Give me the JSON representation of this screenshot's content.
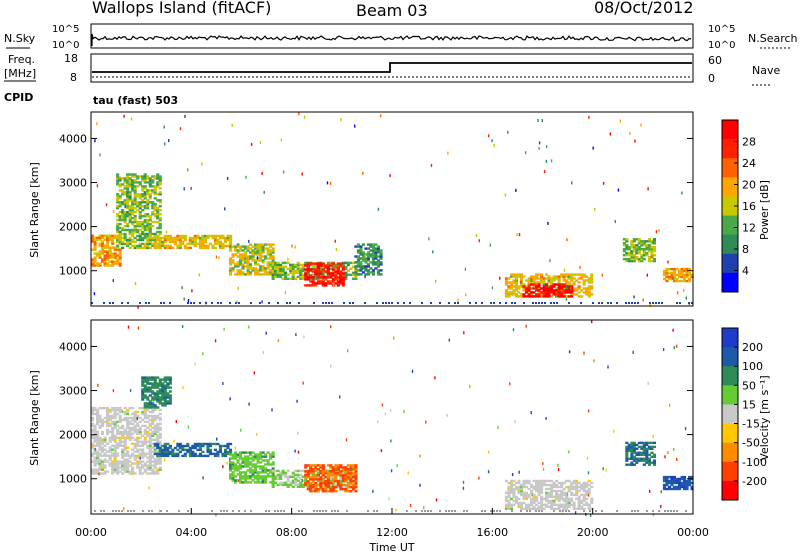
{
  "header": {
    "left_title": "Wallops Island (fitACF)",
    "center_title": "Beam 03",
    "right_title": "08/Oct/2012"
  },
  "sky_panel": {
    "left_label": "N.Sky",
    "right_label": "N.Search",
    "left_ticks": [
      "10^5",
      "10^0"
    ],
    "right_ticks": [
      "10^5",
      "10^0"
    ]
  },
  "freq_panel": {
    "left_label_line1": "Freq.",
    "left_label_line2": "[MHz]",
    "left_ticks": [
      "18",
      "8"
    ],
    "right_label": "Nave",
    "right_ticks": [
      "60",
      "0"
    ],
    "cpid_label": "CPID",
    "cpid_value": "tau (fast) 503"
  },
  "colors": {
    "power": [
      "#0000ff",
      "#2040b0",
      "#2e8b57",
      "#4aa84a",
      "#c8c800",
      "#ffa500",
      "#ff6000",
      "#ff2000",
      "#ff0000"
    ],
    "velocity": [
      "#1e3cc8",
      "#1e5aaa",
      "#2e8b57",
      "#66cc33",
      "#c8c8c8",
      "#ffc800",
      "#ff8c00",
      "#ff4000",
      "#ff0000"
    ]
  },
  "chart_data": [
    {
      "type": "heatmap",
      "name": "power",
      "ylabel": "Slant Range [km]",
      "yticks": [
        "1000",
        "2000",
        "3000",
        "4000"
      ],
      "ylim": [
        200,
        4600
      ],
      "xlim": [
        0,
        24
      ],
      "colorbar_label": "Power [dB]",
      "colorbar_ticks": [
        "28",
        "24",
        "20",
        "16",
        "12",
        "8",
        "4"
      ],
      "clim": [
        0,
        32
      ],
      "regions": [
        {
          "t0": 0.0,
          "t1": 1.2,
          "r0": 1100,
          "r1": 1800,
          "level": 20
        },
        {
          "t0": 1.0,
          "t1": 2.8,
          "r0": 1500,
          "r1": 3200,
          "level": 14
        },
        {
          "t0": 2.5,
          "t1": 5.5,
          "r0": 1500,
          "r1": 1800,
          "level": 18
        },
        {
          "t0": 5.5,
          "t1": 7.2,
          "r0": 900,
          "r1": 1600,
          "level": 16
        },
        {
          "t0": 7.2,
          "t1": 10.5,
          "r0": 800,
          "r1": 1200,
          "level": 14
        },
        {
          "t0": 8.5,
          "t1": 10.0,
          "r0": 650,
          "r1": 1150,
          "level": 28
        },
        {
          "t0": 10.5,
          "t1": 11.5,
          "r0": 900,
          "r1": 1600,
          "level": 10
        },
        {
          "t0": 16.5,
          "t1": 20.0,
          "r0": 400,
          "r1": 900,
          "level": 18
        },
        {
          "t0": 17.2,
          "t1": 19.2,
          "r0": 400,
          "r1": 700,
          "level": 30
        },
        {
          "t0": 21.2,
          "t1": 22.5,
          "r0": 1200,
          "r1": 1700,
          "level": 14
        },
        {
          "t0": 22.8,
          "t1": 24.0,
          "r0": 750,
          "r1": 1050,
          "level": 20
        }
      ]
    },
    {
      "type": "heatmap",
      "name": "velocity",
      "ylabel": "Slant Range [km]",
      "yticks": [
        "1000",
        "2000",
        "3000",
        "4000"
      ],
      "ylim": [
        200,
        4600
      ],
      "xlim": [
        0,
        24
      ],
      "colorbar_label": "Velocity [m s⁻¹]",
      "colorbar_ticks": [
        "200",
        "100",
        "50",
        "15",
        "-15",
        "-50",
        "-100",
        "-200"
      ],
      "clim": [
        -250,
        250
      ],
      "xticks": [
        "00:00",
        "04:00",
        "08:00",
        "12:00",
        "16:00",
        "20:00",
        "00:00"
      ],
      "xlabel": "Time UT",
      "regions": [
        {
          "t0": 0.0,
          "t1": 2.8,
          "r0": 1100,
          "r1": 2600,
          "level": 0
        },
        {
          "t0": 2.0,
          "t1": 3.2,
          "r0": 2600,
          "r1": 3300,
          "level": 120
        },
        {
          "t0": 2.5,
          "t1": 5.5,
          "r0": 1500,
          "r1": 1800,
          "level": 150
        },
        {
          "t0": 5.5,
          "t1": 7.2,
          "r0": 900,
          "r1": 1600,
          "level": 60
        },
        {
          "t0": 7.2,
          "t1": 10.5,
          "r0": 800,
          "r1": 1200,
          "level": 40
        },
        {
          "t0": 8.5,
          "t1": 10.5,
          "r0": 700,
          "r1": 1300,
          "level": -150
        },
        {
          "t0": 16.5,
          "t1": 20.0,
          "r0": 300,
          "r1": 950,
          "level": 0
        },
        {
          "t0": 21.3,
          "t1": 22.5,
          "r0": 1300,
          "r1": 1800,
          "level": 140
        },
        {
          "t0": 22.8,
          "t1": 24.0,
          "r0": 750,
          "r1": 1050,
          "level": 180
        }
      ]
    }
  ]
}
